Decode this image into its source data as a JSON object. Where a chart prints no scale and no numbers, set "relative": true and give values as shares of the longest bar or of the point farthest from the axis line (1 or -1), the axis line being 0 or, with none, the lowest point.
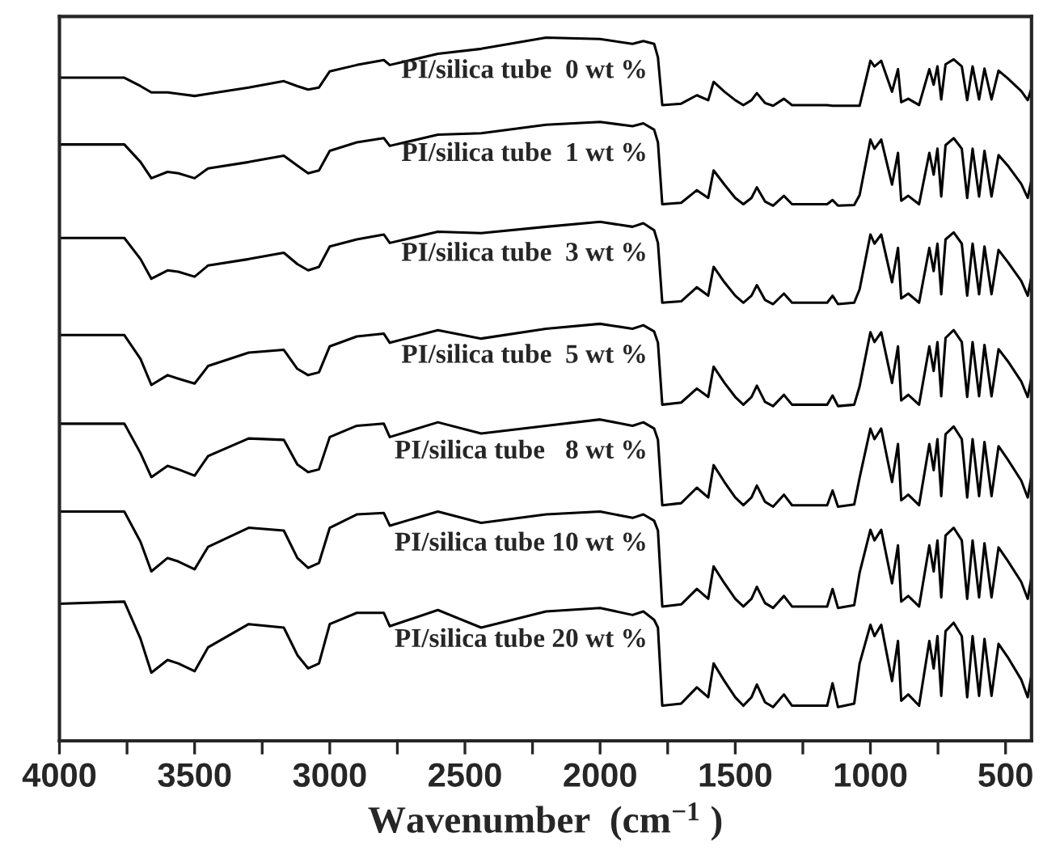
{
  "chart_data": {
    "type": "line",
    "relative": true,
    "xlabel": "Wavenumber  (cm$^{−1}$ )",
    "xlim": [
      4000,
      404
    ],
    "xticks": [
      4000,
      {
        "value": 3750,
        "label": null
      },
      3500,
      {
        "value": 3250,
        "label": null
      },
      3000,
      {
        "value": 2750,
        "label": null
      },
      2500,
      {
        "value": 2250,
        "label": null
      },
      2000,
      {
        "value": 1750,
        "label": null
      },
      1500,
      {
        "value": 1250,
        "label": null
      },
      1000,
      {
        "value": 750,
        "label": null
      },
      500
    ],
    "tick_labels": "x",
    "grid": false,
    "legend": false,
    "marker": "none",
    "line_style": "solid",
    "x": [
      4000,
      3760,
      3700,
      3660,
      3600,
      3560,
      3500,
      3450,
      3300,
      3170,
      3120,
      3080,
      3040,
      3000,
      2900,
      2800,
      2778,
      2600,
      2440,
      2200,
      2000,
      1880,
      1840,
      1800,
      1786,
      1770,
      1700,
      1642,
      1600,
      1580,
      1540,
      1500,
      1470,
      1440,
      1420,
      1390,
      1360,
      1320,
      1290,
      1200,
      1160,
      1140,
      1120,
      1060,
      1040,
      1000,
      985,
      960,
      920,
      898,
      886,
      860,
      820,
      782,
      766,
      752,
      738,
      722,
      692,
      662,
      642,
      622,
      598,
      578,
      552,
      526,
      492,
      442,
      418,
      404
    ],
    "series": [
      {
        "name": "PI/silica tube  0 wt %",
        "color": "#000000",
        "values": [
          0.943,
          0.943,
          0.931,
          0.922,
          0.922,
          0.92,
          0.917,
          0.92,
          0.929,
          0.938,
          0.931,
          0.926,
          0.929,
          0.952,
          0.961,
          0.968,
          0.961,
          0.977,
          0.984,
          1.0,
          0.998,
          0.991,
          0.995,
          0.991,
          0.972,
          0.904,
          0.906,
          0.918,
          0.911,
          0.937,
          0.923,
          0.911,
          0.904,
          0.911,
          0.921,
          0.907,
          0.903,
          0.913,
          0.904,
          0.904,
          0.904,
          0.903,
          0.903,
          0.903,
          0.903,
          0.967,
          0.959,
          0.967,
          0.923,
          0.955,
          0.908,
          0.913,
          0.904,
          0.955,
          0.933,
          0.959,
          0.912,
          0.962,
          0.969,
          0.959,
          0.911,
          0.959,
          0.912,
          0.956,
          0.912,
          0.953,
          0.942,
          0.924,
          0.911,
          0.928
        ]
      },
      {
        "name": "PI/silica tube  1 wt %",
        "color": "#000000",
        "values": [
          0.848,
          0.848,
          0.823,
          0.8,
          0.809,
          0.807,
          0.8,
          0.814,
          0.823,
          0.832,
          0.818,
          0.807,
          0.811,
          0.839,
          0.851,
          0.857,
          0.846,
          0.862,
          0.864,
          0.876,
          0.88,
          0.874,
          0.878,
          0.869,
          0.851,
          0.763,
          0.765,
          0.783,
          0.772,
          0.811,
          0.791,
          0.772,
          0.763,
          0.772,
          0.787,
          0.767,
          0.761,
          0.775,
          0.763,
          0.763,
          0.763,
          0.769,
          0.761,
          0.762,
          0.776,
          0.855,
          0.842,
          0.855,
          0.791,
          0.836,
          0.768,
          0.775,
          0.763,
          0.836,
          0.805,
          0.842,
          0.774,
          0.847,
          0.857,
          0.842,
          0.772,
          0.842,
          0.774,
          0.839,
          0.774,
          0.833,
          0.818,
          0.792,
          0.772,
          0.798
        ]
      },
      {
        "name": "PI/silica tube  3 wt %",
        "color": "#000000",
        "values": [
          0.715,
          0.715,
          0.685,
          0.657,
          0.669,
          0.667,
          0.66,
          0.676,
          0.685,
          0.694,
          0.678,
          0.669,
          0.674,
          0.703,
          0.713,
          0.72,
          0.708,
          0.724,
          0.722,
          0.731,
          0.738,
          0.731,
          0.736,
          0.726,
          0.708,
          0.623,
          0.625,
          0.645,
          0.633,
          0.674,
          0.652,
          0.633,
          0.623,
          0.633,
          0.648,
          0.627,
          0.621,
          0.636,
          0.623,
          0.623,
          0.623,
          0.633,
          0.621,
          0.623,
          0.642,
          0.72,
          0.707,
          0.72,
          0.652,
          0.701,
          0.629,
          0.636,
          0.623,
          0.701,
          0.668,
          0.707,
          0.635,
          0.713,
          0.723,
          0.707,
          0.633,
          0.707,
          0.635,
          0.703,
          0.635,
          0.698,
          0.681,
          0.654,
          0.633,
          0.66
        ]
      },
      {
        "name": "PI/silica tube  5 wt %",
        "color": "#000000",
        "values": [
          0.577,
          0.577,
          0.543,
          0.506,
          0.52,
          0.515,
          0.508,
          0.533,
          0.552,
          0.556,
          0.529,
          0.52,
          0.524,
          0.561,
          0.575,
          0.579,
          0.566,
          0.584,
          0.572,
          0.586,
          0.593,
          0.586,
          0.591,
          0.582,
          0.566,
          0.478,
          0.481,
          0.501,
          0.489,
          0.532,
          0.509,
          0.489,
          0.478,
          0.489,
          0.505,
          0.482,
          0.476,
          0.492,
          0.478,
          0.478,
          0.478,
          0.491,
          0.476,
          0.478,
          0.504,
          0.581,
          0.567,
          0.581,
          0.509,
          0.561,
          0.484,
          0.492,
          0.478,
          0.561,
          0.526,
          0.567,
          0.49,
          0.573,
          0.584,
          0.567,
          0.489,
          0.567,
          0.49,
          0.563,
          0.49,
          0.557,
          0.54,
          0.511,
          0.489,
          0.517
        ]
      },
      {
        "name": "PI/silica tube   8 wt %",
        "color": "#000000",
        "values": [
          0.451,
          0.451,
          0.409,
          0.375,
          0.391,
          0.386,
          0.377,
          0.405,
          0.43,
          0.428,
          0.393,
          0.382,
          0.386,
          0.432,
          0.448,
          0.451,
          0.432,
          0.453,
          0.437,
          0.448,
          0.457,
          0.448,
          0.453,
          0.444,
          0.428,
          0.335,
          0.338,
          0.36,
          0.346,
          0.392,
          0.368,
          0.346,
          0.335,
          0.346,
          0.363,
          0.34,
          0.333,
          0.35,
          0.335,
          0.335,
          0.335,
          0.356,
          0.333,
          0.336,
          0.374,
          0.444,
          0.429,
          0.444,
          0.368,
          0.422,
          0.342,
          0.35,
          0.335,
          0.422,
          0.385,
          0.429,
          0.348,
          0.436,
          0.447,
          0.429,
          0.346,
          0.429,
          0.348,
          0.425,
          0.348,
          0.419,
          0.4,
          0.37,
          0.346,
          0.377
        ]
      },
      {
        "name": "PI/silica tube 10 wt %",
        "color": "#000000",
        "values": [
          0.326,
          0.326,
          0.283,
          0.241,
          0.26,
          0.255,
          0.244,
          0.276,
          0.303,
          0.299,
          0.26,
          0.246,
          0.253,
          0.303,
          0.322,
          0.324,
          0.306,
          0.326,
          0.31,
          0.322,
          0.326,
          0.317,
          0.322,
          0.313,
          0.299,
          0.191,
          0.194,
          0.216,
          0.202,
          0.248,
          0.224,
          0.202,
          0.191,
          0.202,
          0.219,
          0.196,
          0.189,
          0.206,
          0.191,
          0.191,
          0.191,
          0.216,
          0.189,
          0.193,
          0.239,
          0.3,
          0.285,
          0.3,
          0.224,
          0.278,
          0.198,
          0.206,
          0.191,
          0.278,
          0.241,
          0.285,
          0.204,
          0.292,
          0.303,
          0.285,
          0.202,
          0.285,
          0.204,
          0.281,
          0.204,
          0.275,
          0.256,
          0.226,
          0.202,
          0.233
        ]
      },
      {
        "name": "PI/silica tube 20 wt %",
        "color": "#000000",
        "values": [
          0.195,
          0.198,
          0.145,
          0.097,
          0.115,
          0.11,
          0.099,
          0.133,
          0.166,
          0.161,
          0.122,
          0.103,
          0.11,
          0.166,
          0.182,
          0.182,
          0.163,
          0.186,
          0.161,
          0.184,
          0.189,
          0.179,
          0.184,
          0.172,
          0.161,
          0.05,
          0.053,
          0.076,
          0.062,
          0.11,
          0.085,
          0.062,
          0.05,
          0.062,
          0.08,
          0.055,
          0.048,
          0.066,
          0.05,
          0.05,
          0.05,
          0.082,
          0.048,
          0.053,
          0.11,
          0.165,
          0.149,
          0.165,
          0.085,
          0.142,
          0.057,
          0.066,
          0.05,
          0.142,
          0.103,
          0.149,
          0.064,
          0.156,
          0.168,
          0.149,
          0.062,
          0.149,
          0.064,
          0.145,
          0.064,
          0.138,
          0.119,
          0.087,
          0.062,
          0.094
        ]
      }
    ]
  }
}
